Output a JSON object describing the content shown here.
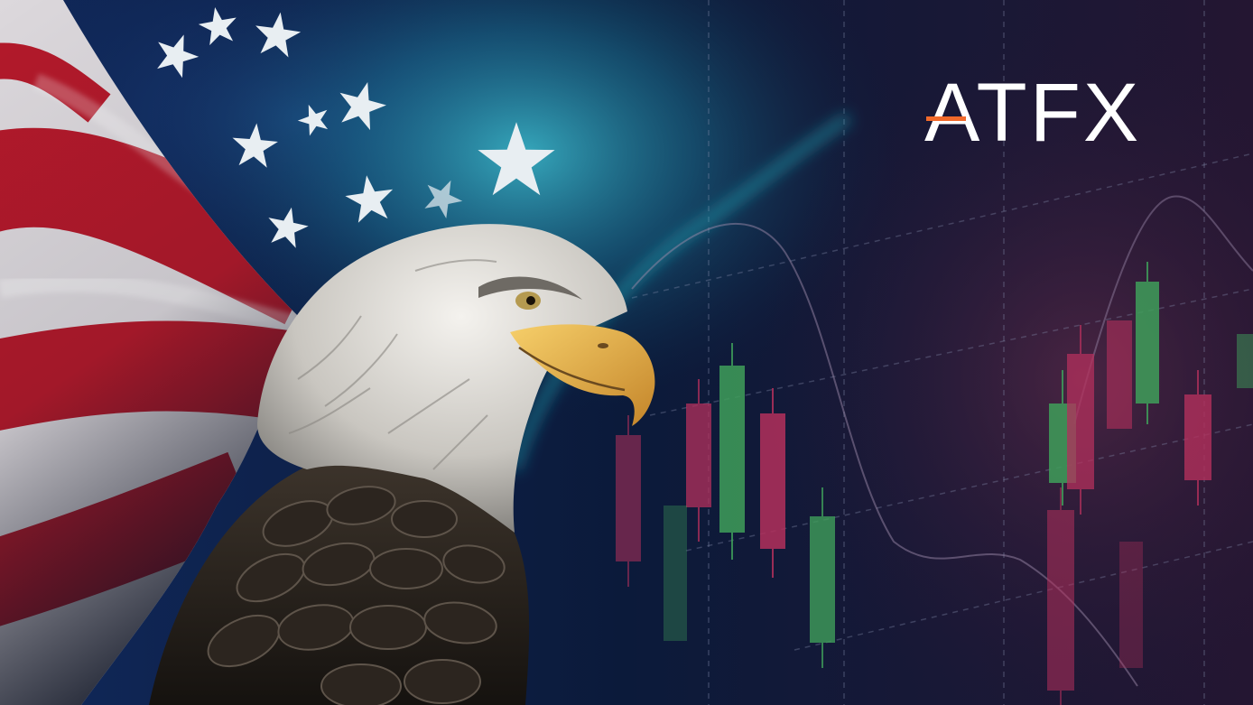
{
  "brand": {
    "logo_text": "ATFX",
    "logo_color": "#ffffff",
    "accent_color": "#f26a2b"
  },
  "palette": {
    "flag_red": "#b3192a",
    "flag_white": "#dcd8dc",
    "star_color": "#e8eef2",
    "candle_up": "#3f9e5a",
    "candle_down": "#b3305c",
    "beak_color": "#e8b040"
  }
}
